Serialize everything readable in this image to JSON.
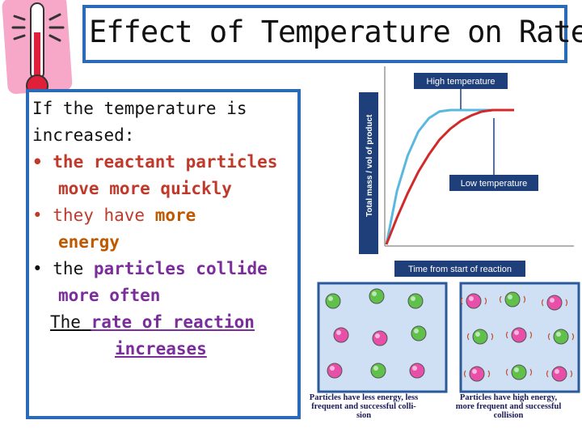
{
  "title": "Effect of Temperature on Rate",
  "body": {
    "intro1": "If the temperature is",
    "intro2": "increased:",
    "b1a": "• the reactant particles",
    "b1b": "move more quickly",
    "b2a": "• they have ",
    "b2a_hl": "more",
    "b2b": "energy",
    "b3a": "• the ",
    "b3a_hl": "particles",
    "b3a_end": " collide",
    "b3b": "more often",
    "concl1": "The ",
    "concl1_hl": "rate of reaction",
    "concl2": "increases"
  },
  "chart_data": {
    "type": "line",
    "ylabel": "Total mass / vol of product",
    "xlabel": "Time from start of reaction",
    "series": [
      {
        "name": "High temperature",
        "color": "#5ab8e0",
        "points": [
          [
            0,
            0
          ],
          [
            0.5,
            40
          ],
          [
            1,
            66
          ],
          [
            1.5,
            84
          ],
          [
            2,
            94
          ],
          [
            2.5,
            99
          ],
          [
            3,
            100
          ],
          [
            4,
            100
          ],
          [
            5,
            100
          ],
          [
            6,
            100
          ]
        ]
      },
      {
        "name": "Low temperature",
        "color": "#d22a2a",
        "points": [
          [
            0,
            0
          ],
          [
            0.5,
            20
          ],
          [
            1,
            38
          ],
          [
            1.5,
            54
          ],
          [
            2,
            67
          ],
          [
            2.5,
            78
          ],
          [
            3,
            86
          ],
          [
            3.5,
            92
          ],
          [
            4,
            96
          ],
          [
            4.5,
            99
          ],
          [
            5,
            100
          ],
          [
            6,
            100
          ]
        ]
      }
    ],
    "labels": {
      "high": "High temperature",
      "low": "Low temperature"
    }
  },
  "particles": {
    "caption_low": "Particles have less energy, less frequent and successful collision",
    "caption_low_l1": "Particles have less energy, less",
    "caption_low_l2": "frequent and successful colli-",
    "caption_low_l3": "sion",
    "caption_high_l1": "Particles have high energy,",
    "caption_high_l2": "more frequent and successful",
    "caption_high_l3": "collision",
    "colors": {
      "pink": "#e84fa8",
      "green": "#5fc04a",
      "frame": "#2a5a9a"
    }
  }
}
